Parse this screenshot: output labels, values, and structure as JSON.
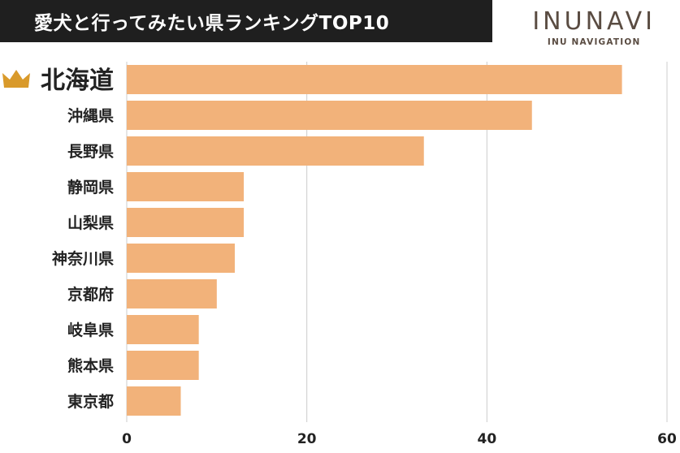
{
  "header": {
    "title": "愛犬と行ってみたい県ランキングTOP10"
  },
  "brand": {
    "name": "INUNAVI",
    "subtitle": "INU NAVIGATION"
  },
  "chart_data": {
    "type": "bar",
    "orientation": "horizontal",
    "categories": [
      "北海道",
      "沖縄県",
      "長野県",
      "静岡県",
      "山梨県",
      "神奈川県",
      "京都府",
      "岐阜県",
      "熊本県",
      "東京都"
    ],
    "values": [
      55,
      45,
      33,
      13,
      13,
      12,
      10,
      8,
      8,
      6
    ],
    "xlim": [
      0,
      60
    ],
    "xticks": [
      "0",
      "20",
      "40",
      "60"
    ],
    "grid": "vertical",
    "bar_color": "#f2b27a",
    "grid_color": "#cccccc",
    "highlight_icon": "crown-icon",
    "highlight_color": "#d99a2b"
  }
}
